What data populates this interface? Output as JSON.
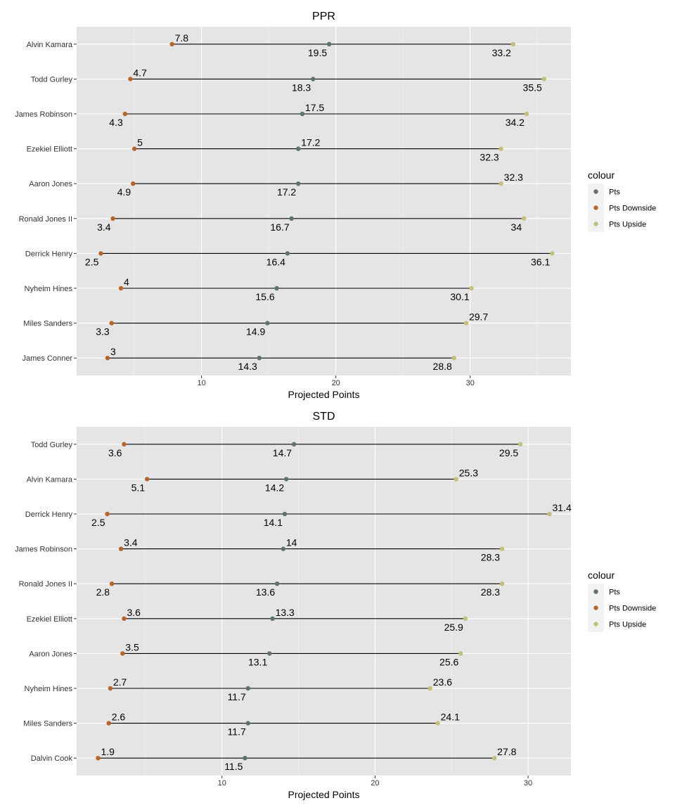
{
  "chart_data": [
    {
      "type": "dumbbell",
      "title": "PPR",
      "xlabel": "Projected Points",
      "xlim": [
        0.7,
        37.5
      ],
      "xticks": [
        10,
        20,
        30
      ],
      "legend_title": "colour",
      "legend_position": "right",
      "series_colors": {
        "Pts": "#5f7366",
        "Pts Downside": "#b8652b",
        "Pts Upside": "#c2c07a"
      },
      "series_names": [
        "Pts",
        "Pts Downside",
        "Pts Upside"
      ],
      "players": [
        {
          "name": "Alvin Kamara",
          "downside": 7.8,
          "pts": 19.5,
          "upside": 33.2,
          "lab": [
            "above",
            "below",
            "below"
          ]
        },
        {
          "name": "Todd Gurley",
          "downside": 4.7,
          "pts": 18.3,
          "upside": 35.5,
          "lab": [
            "above",
            "below",
            "below"
          ]
        },
        {
          "name": "James Robinson",
          "downside": 4.3,
          "pts": 17.5,
          "upside": 34.2,
          "lab": [
            "below",
            "above",
            "below"
          ]
        },
        {
          "name": "Ezekiel Elliott",
          "downside": 5,
          "pts": 17.2,
          "upside": 32.3,
          "lab": [
            "above",
            "above",
            "below"
          ]
        },
        {
          "name": "Aaron Jones",
          "downside": 4.9,
          "pts": 17.2,
          "upside": 32.3,
          "lab": [
            "below",
            "below",
            "above"
          ]
        },
        {
          "name": "Ronald Jones II",
          "downside": 3.4,
          "pts": 16.7,
          "upside": 34,
          "lab": [
            "below",
            "below",
            "below"
          ]
        },
        {
          "name": "Derrick Henry",
          "downside": 2.5,
          "pts": 16.4,
          "upside": 36.1,
          "lab": [
            "below",
            "below",
            "below"
          ]
        },
        {
          "name": "Nyheim Hines",
          "downside": 4,
          "pts": 15.6,
          "upside": 30.1,
          "lab": [
            "above",
            "below",
            "below"
          ]
        },
        {
          "name": "Miles Sanders",
          "downside": 3.3,
          "pts": 14.9,
          "upside": 29.7,
          "lab": [
            "below",
            "below",
            "above"
          ]
        },
        {
          "name": "James Conner",
          "downside": 3,
          "pts": 14.3,
          "upside": 28.8,
          "lab": [
            "above",
            "below",
            "below"
          ]
        }
      ]
    },
    {
      "type": "dumbbell",
      "title": "STD",
      "xlabel": "Projected Points",
      "xlim": [
        0.5,
        32.8
      ],
      "xticks": [
        10,
        20,
        30
      ],
      "legend_title": "colour",
      "legend_position": "right",
      "series_colors": {
        "Pts": "#5f7366",
        "Pts Downside": "#b8652b",
        "Pts Upside": "#c2c07a"
      },
      "series_names": [
        "Pts",
        "Pts Downside",
        "Pts Upside"
      ],
      "players": [
        {
          "name": "Todd Gurley",
          "downside": 3.6,
          "pts": 14.7,
          "upside": 29.5,
          "lab": [
            "below",
            "below",
            "below"
          ]
        },
        {
          "name": "Alvin Kamara",
          "downside": 5.1,
          "pts": 14.2,
          "upside": 25.3,
          "lab": [
            "below",
            "below",
            "above"
          ]
        },
        {
          "name": "Derrick Henry",
          "downside": 2.5,
          "pts": 14.1,
          "upside": 31.4,
          "lab": [
            "below",
            "below",
            "above"
          ]
        },
        {
          "name": "James Robinson",
          "downside": 3.4,
          "pts": 14,
          "upside": 28.3,
          "lab": [
            "above",
            "above",
            "below"
          ]
        },
        {
          "name": "Ronald Jones II",
          "downside": 2.8,
          "pts": 13.6,
          "upside": 28.3,
          "lab": [
            "below",
            "below",
            "below"
          ]
        },
        {
          "name": "Ezekiel Elliott",
          "downside": 3.6,
          "pts": 13.3,
          "upside": 25.9,
          "lab": [
            "above",
            "above",
            "below"
          ]
        },
        {
          "name": "Aaron Jones",
          "downside": 3.5,
          "pts": 13.1,
          "upside": 25.6,
          "lab": [
            "above",
            "below",
            "below"
          ]
        },
        {
          "name": "Nyheim Hines",
          "downside": 2.7,
          "pts": 11.7,
          "upside": 23.6,
          "lab": [
            "above",
            "below",
            "above"
          ]
        },
        {
          "name": "Miles Sanders",
          "downside": 2.6,
          "pts": 11.7,
          "upside": 24.1,
          "lab": [
            "above",
            "below",
            "above"
          ]
        },
        {
          "name": "Dalvin Cook",
          "downside": 1.9,
          "pts": 11.5,
          "upside": 27.8,
          "lab": [
            "above",
            "below",
            "above"
          ]
        }
      ]
    }
  ]
}
